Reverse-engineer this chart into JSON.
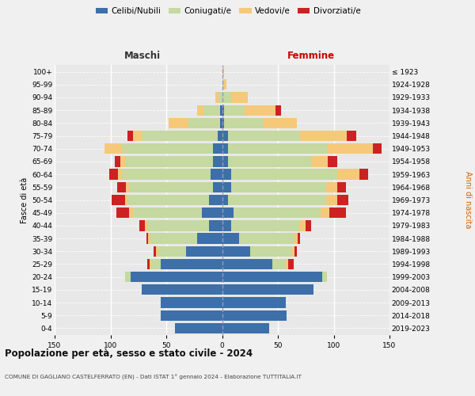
{
  "age_groups": [
    "0-4",
    "5-9",
    "10-14",
    "15-19",
    "20-24",
    "25-29",
    "30-34",
    "35-39",
    "40-44",
    "45-49",
    "50-54",
    "55-59",
    "60-64",
    "65-69",
    "70-74",
    "75-79",
    "80-84",
    "85-89",
    "90-94",
    "95-99",
    "100+"
  ],
  "birth_years": [
    "2019-2023",
    "2014-2018",
    "2009-2013",
    "2004-2008",
    "1999-2003",
    "1994-1998",
    "1989-1993",
    "1984-1988",
    "1979-1983",
    "1974-1978",
    "1969-1973",
    "1964-1968",
    "1959-1963",
    "1954-1958",
    "1949-1953",
    "1944-1948",
    "1939-1943",
    "1934-1938",
    "1929-1933",
    "1924-1928",
    "≤ 1923"
  ],
  "colors": {
    "celibe": "#3d6fa8",
    "coniugato": "#c5d9a0",
    "vedovo": "#f5c97a",
    "divorziato": "#cc2222"
  },
  "maschi": {
    "celibe": [
      42,
      55,
      55,
      72,
      82,
      55,
      32,
      22,
      12,
      18,
      12,
      8,
      10,
      8,
      8,
      4,
      2,
      2,
      0,
      0,
      0
    ],
    "coniugato": [
      0,
      0,
      0,
      0,
      5,
      8,
      25,
      42,
      55,
      62,
      72,
      75,
      80,
      78,
      82,
      68,
      28,
      15,
      3,
      0,
      0
    ],
    "vedovo": [
      0,
      0,
      0,
      0,
      0,
      2,
      2,
      2,
      2,
      3,
      3,
      3,
      3,
      5,
      15,
      8,
      18,
      5,
      3,
      0,
      0
    ],
    "divorziato": [
      0,
      0,
      0,
      0,
      0,
      2,
      2,
      2,
      5,
      12,
      12,
      8,
      8,
      5,
      0,
      5,
      0,
      0,
      0,
      0,
      0
    ]
  },
  "femmine": {
    "nubile": [
      42,
      58,
      57,
      82,
      90,
      45,
      25,
      15,
      8,
      10,
      5,
      8,
      8,
      5,
      5,
      5,
      2,
      2,
      0,
      0,
      0
    ],
    "coniugata": [
      0,
      0,
      0,
      0,
      4,
      12,
      38,
      50,
      62,
      78,
      88,
      85,
      95,
      75,
      90,
      65,
      35,
      18,
      8,
      2,
      0
    ],
    "vedova": [
      0,
      0,
      0,
      0,
      0,
      2,
      2,
      3,
      5,
      8,
      10,
      10,
      20,
      15,
      40,
      42,
      30,
      28,
      15,
      2,
      2
    ],
    "divorziata": [
      0,
      0,
      0,
      0,
      0,
      5,
      2,
      2,
      5,
      15,
      10,
      8,
      8,
      8,
      8,
      8,
      0,
      5,
      0,
      0,
      0
    ]
  },
  "xlim": 150,
  "title": "Popolazione per età, sesso e stato civile - 2024",
  "subtitle": "COMUNE DI GAGLIANO CASTELFERRATO (EN) - Dati ISTAT 1° gennaio 2024 - Elaborazione TUTTITALIA.IT",
  "xlabel_left": "Maschi",
  "xlabel_right": "Femmine",
  "ylabel_left": "Fasce di età",
  "ylabel_right": "Anni di nascita",
  "legend_labels": [
    "Celibi/Nubili",
    "Coniugati/e",
    "Vedovi/e",
    "Divorziati/e"
  ],
  "bg_color": "#f0f0f0",
  "plot_bg": "#e8e8e8"
}
